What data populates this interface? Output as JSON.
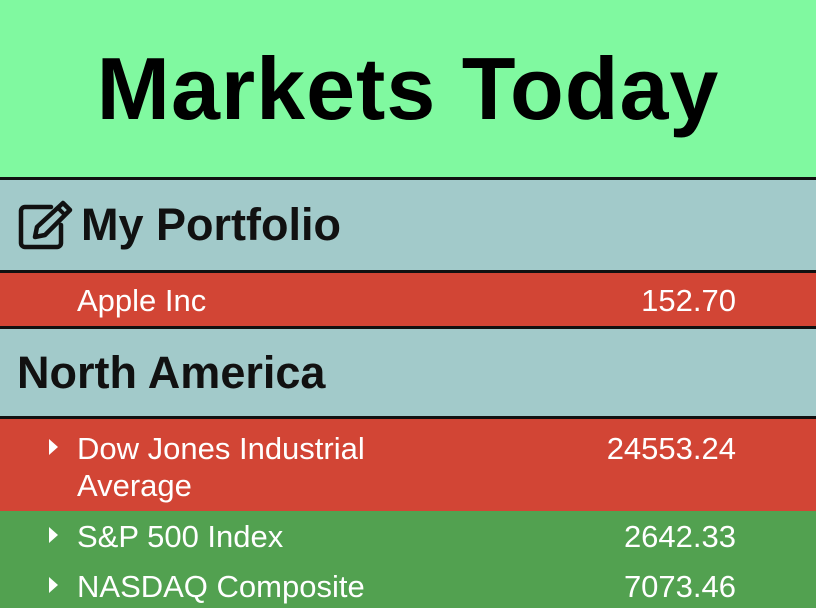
{
  "header": {
    "title": "Markets Today"
  },
  "portfolio": {
    "title": "My Portfolio",
    "edit_icon": "edit-icon",
    "items": [
      {
        "name": "Apple Inc",
        "value": "152.70",
        "trend": "down"
      }
    ]
  },
  "north_america": {
    "title": "North America",
    "items": [
      {
        "name": "Dow Jones Industrial Average",
        "value": "24553.24",
        "trend": "down"
      },
      {
        "name": "S&P 500 Index",
        "value": "2642.33",
        "trend": "up"
      },
      {
        "name": "NASDAQ Composite",
        "value": "7073.46",
        "trend": "up"
      }
    ]
  },
  "colors": {
    "header_bg": "#80f9a0",
    "section_bg": "#a2caca",
    "down": "#d24535",
    "up": "#52a150"
  }
}
